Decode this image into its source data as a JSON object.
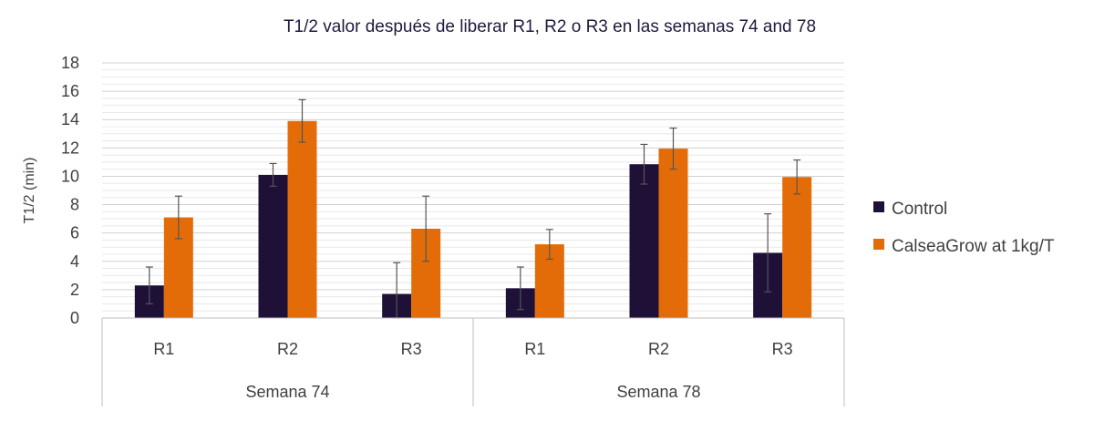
{
  "chart_data": {
    "type": "bar",
    "title": "T1/2 valor después  de liberar  R1, R2 o R3 en las semanas 74 and 78",
    "ylabel": "T1/2 (min)",
    "xlabel": "",
    "ylim": [
      0,
      18
    ],
    "yticks": [
      "0",
      "2",
      "4",
      "6",
      "8",
      "10",
      "12",
      "14",
      "16",
      "18"
    ],
    "grid": true,
    "legend_position": "right",
    "groups": [
      {
        "label": "Semana 74",
        "categories": [
          "R1",
          "R2",
          "R3"
        ]
      },
      {
        "label": "Semana 78",
        "categories": [
          "R1",
          "R2",
          "R3"
        ]
      }
    ],
    "series": [
      {
        "name": "Control",
        "color": "#1f1038",
        "values": [
          2.3,
          10.1,
          1.7,
          2.1,
          10.85,
          4.6
        ],
        "errors": [
          1.3,
          0.8,
          2.2,
          1.5,
          1.4,
          2.75
        ]
      },
      {
        "name": "CalseaGrow at 1kg/T",
        "color": "#e36c09",
        "values": [
          7.1,
          13.9,
          6.3,
          5.2,
          11.95,
          9.95
        ],
        "errors": [
          1.5,
          1.5,
          2.3,
          1.05,
          1.45,
          1.2
        ]
      }
    ]
  }
}
